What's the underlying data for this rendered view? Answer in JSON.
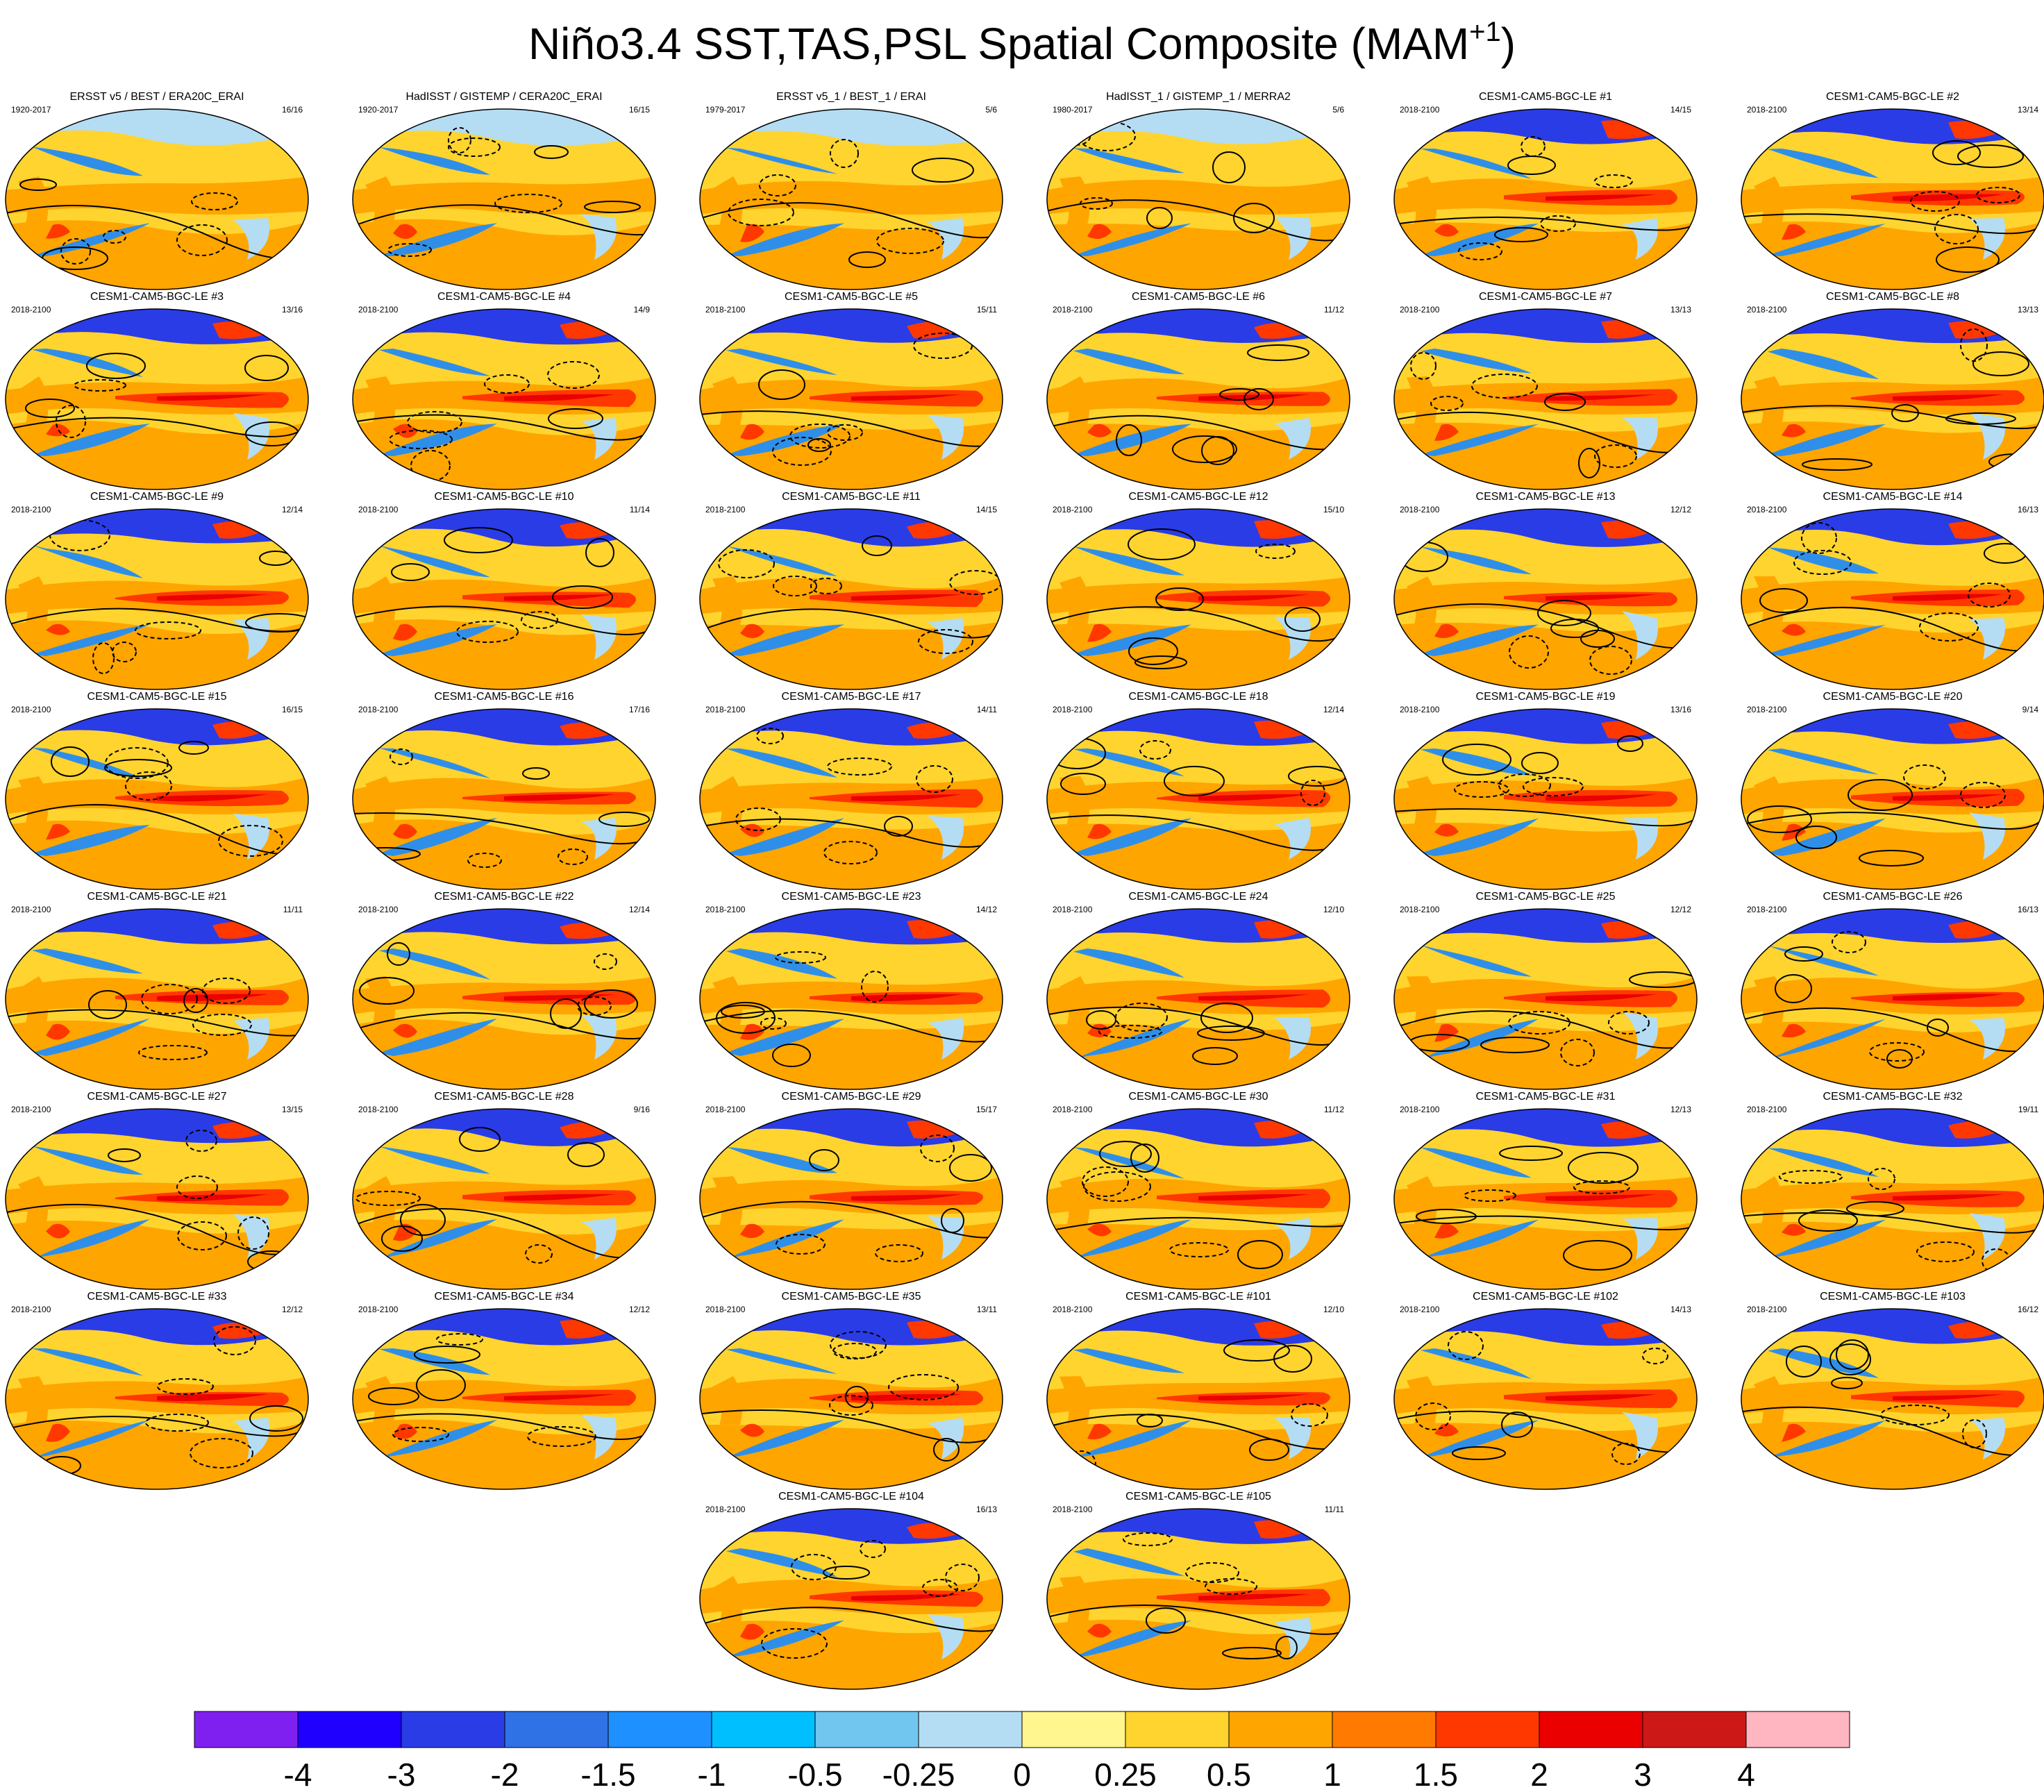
{
  "title": {
    "main": "Niño3.4 SST,TAS,PSL Spatial Composite (MAM",
    "superscript": "+1",
    "close": ")"
  },
  "panels": [
    {
      "title": "ERSST v5 / BEST / ERA20C_ERAI",
      "period": "1920-2017",
      "count": "16/16"
    },
    {
      "title": "HadISST / GISTEMP / CERA20C_ERAI",
      "period": "1920-2017",
      "count": "16/15"
    },
    {
      "title": "ERSST v5_1 / BEST_1 / ERAI",
      "period": "1979-2017",
      "count": "5/6"
    },
    {
      "title": "HadISST_1 / GISTEMP_1 / MERRA2",
      "period": "1980-2017",
      "count": "5/6"
    },
    {
      "title": "CESM1-CAM5-BGC-LE #1",
      "period": "2018-2100",
      "count": "14/15"
    },
    {
      "title": "CESM1-CAM5-BGC-LE #2",
      "period": "2018-2100",
      "count": "13/14"
    },
    {
      "title": "CESM1-CAM5-BGC-LE #3",
      "period": "2018-2100",
      "count": "13/16"
    },
    {
      "title": "CESM1-CAM5-BGC-LE #4",
      "period": "2018-2100",
      "count": "14/9"
    },
    {
      "title": "CESM1-CAM5-BGC-LE #5",
      "period": "2018-2100",
      "count": "15/11"
    },
    {
      "title": "CESM1-CAM5-BGC-LE #6",
      "period": "2018-2100",
      "count": "11/12"
    },
    {
      "title": "CESM1-CAM5-BGC-LE #7",
      "period": "2018-2100",
      "count": "13/13"
    },
    {
      "title": "CESM1-CAM5-BGC-LE #8",
      "period": "2018-2100",
      "count": "13/13"
    },
    {
      "title": "CESM1-CAM5-BGC-LE #9",
      "period": "2018-2100",
      "count": "12/14"
    },
    {
      "title": "CESM1-CAM5-BGC-LE #10",
      "period": "2018-2100",
      "count": "11/14"
    },
    {
      "title": "CESM1-CAM5-BGC-LE #11",
      "period": "2018-2100",
      "count": "14/15"
    },
    {
      "title": "CESM1-CAM5-BGC-LE #12",
      "period": "2018-2100",
      "count": "15/10"
    },
    {
      "title": "CESM1-CAM5-BGC-LE #13",
      "period": "2018-2100",
      "count": "12/12"
    },
    {
      "title": "CESM1-CAM5-BGC-LE #14",
      "period": "2018-2100",
      "count": "16/13"
    },
    {
      "title": "CESM1-CAM5-BGC-LE #15",
      "period": "2018-2100",
      "count": "16/15"
    },
    {
      "title": "CESM1-CAM5-BGC-LE #16",
      "period": "2018-2100",
      "count": "17/16"
    },
    {
      "title": "CESM1-CAM5-BGC-LE #17",
      "period": "2018-2100",
      "count": "14/11"
    },
    {
      "title": "CESM1-CAM5-BGC-LE #18",
      "period": "2018-2100",
      "count": "12/14"
    },
    {
      "title": "CESM1-CAM5-BGC-LE #19",
      "period": "2018-2100",
      "count": "13/16"
    },
    {
      "title": "CESM1-CAM5-BGC-LE #20",
      "period": "2018-2100",
      "count": "9/14"
    },
    {
      "title": "CESM1-CAM5-BGC-LE #21",
      "period": "2018-2100",
      "count": "11/11"
    },
    {
      "title": "CESM1-CAM5-BGC-LE #22",
      "period": "2018-2100",
      "count": "12/14"
    },
    {
      "title": "CESM1-CAM5-BGC-LE #23",
      "period": "2018-2100",
      "count": "14/12"
    },
    {
      "title": "CESM1-CAM5-BGC-LE #24",
      "period": "2018-2100",
      "count": "12/10"
    },
    {
      "title": "CESM1-CAM5-BGC-LE #25",
      "period": "2018-2100",
      "count": "12/12"
    },
    {
      "title": "CESM1-CAM5-BGC-LE #26",
      "period": "2018-2100",
      "count": "16/13"
    },
    {
      "title": "CESM1-CAM5-BGC-LE #27",
      "period": "2018-2100",
      "count": "13/15"
    },
    {
      "title": "CESM1-CAM5-BGC-LE #28",
      "period": "2018-2100",
      "count": "9/16"
    },
    {
      "title": "CESM1-CAM5-BGC-LE #29",
      "period": "2018-2100",
      "count": "15/17"
    },
    {
      "title": "CESM1-CAM5-BGC-LE #30",
      "period": "2018-2100",
      "count": "11/12"
    },
    {
      "title": "CESM1-CAM5-BGC-LE #31",
      "period": "2018-2100",
      "count": "12/13"
    },
    {
      "title": "CESM1-CAM5-BGC-LE #32",
      "period": "2018-2100",
      "count": "19/11"
    },
    {
      "title": "CESM1-CAM5-BGC-LE #33",
      "period": "2018-2100",
      "count": "12/12"
    },
    {
      "title": "CESM1-CAM5-BGC-LE #34",
      "period": "2018-2100",
      "count": "12/12"
    },
    {
      "title": "CESM1-CAM5-BGC-LE #35",
      "period": "2018-2100",
      "count": "13/11"
    },
    {
      "title": "CESM1-CAM5-BGC-LE #101",
      "period": "2018-2100",
      "count": "12/10"
    },
    {
      "title": "CESM1-CAM5-BGC-LE #102",
      "period": "2018-2100",
      "count": "14/13"
    },
    {
      "title": "CESM1-CAM5-BGC-LE #103",
      "period": "2018-2100",
      "count": "16/12"
    },
    {
      "title": "CESM1-CAM5-BGC-LE #104",
      "period": "2018-2100",
      "count": "16/13"
    },
    {
      "title": "CESM1-CAM5-BGC-LE #105",
      "period": "2018-2100",
      "count": "11/11"
    }
  ],
  "colorbar": {
    "colors": [
      "#8020f0",
      "#1f00ff",
      "#2a3ce6",
      "#2f72e6",
      "#1e90ff",
      "#00bfff",
      "#71c6f0",
      "#b4ddf3",
      "#fff68f",
      "#ffd42f",
      "#ffa500",
      "#ff7a00",
      "#ff3800",
      "#ea0000",
      "#cd1818",
      "#ffb6c1"
    ],
    "labels": [
      "-4",
      "-3",
      "-2",
      "-1.5",
      "-1",
      "-0.5",
      "-0.25",
      "0",
      "0.25",
      "0.5",
      "1",
      "1.5",
      "2",
      "3",
      "4"
    ]
  },
  "palette": {
    "ocean_pale": "#b4ddf3",
    "cool": "#2f8fe8",
    "deep_cool": "#2a3ce6",
    "warm": "#ffa500",
    "hot": "#ff3800",
    "yellow": "#ffd42f",
    "contour": "#000000"
  }
}
